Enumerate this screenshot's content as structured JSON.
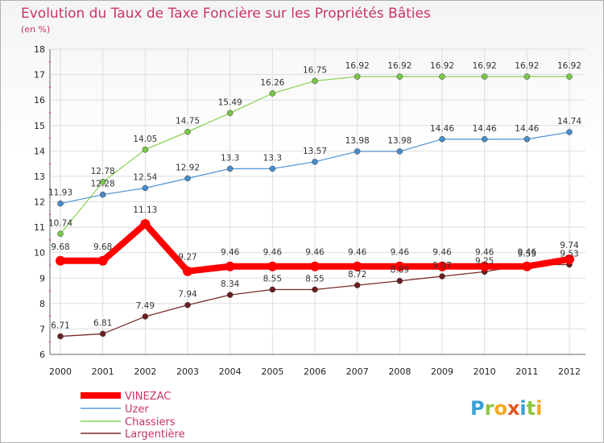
{
  "chart_data": {
    "type": "line",
    "title": "Evolution du Taux de Taxe Foncière sur les Propriétés Bâties",
    "subtitle": "(en %)",
    "xlabel": "",
    "ylabel": "",
    "categories": [
      "2000",
      "2001",
      "2002",
      "2003",
      "2004",
      "2005",
      "2006",
      "2007",
      "2008",
      "2009",
      "2010",
      "2011",
      "2012"
    ],
    "ylim": [
      6,
      18
    ],
    "yticks": [
      6,
      7,
      8,
      9,
      10,
      11,
      12,
      13,
      14,
      15,
      16,
      17,
      18
    ],
    "grid": true,
    "series": [
      {
        "name": "VINEZAC",
        "color": "#ff0000",
        "values": [
          9.68,
          9.68,
          11.13,
          9.27,
          9.46,
          9.46,
          9.46,
          9.46,
          9.46,
          9.46,
          9.46,
          9.46,
          9.74
        ],
        "labels": [
          "9.68",
          "9.68",
          "11.13",
          "9.27",
          "9.46",
          "9.46",
          "9.46",
          "9.46",
          "9.46",
          "9.46",
          "9.46",
          "9.46",
          "9.74"
        ]
      },
      {
        "name": "Uzer",
        "color": "#5b9bd5",
        "values": [
          11.93,
          12.28,
          12.54,
          12.92,
          13.3,
          13.3,
          13.57,
          13.98,
          13.98,
          14.46,
          14.46,
          14.46,
          14.74
        ],
        "labels": [
          "11.93",
          "12.28",
          "12.54",
          "12.92",
          "13.3",
          "13.3",
          "13.57",
          "13.98",
          "13.98",
          "14.46",
          "14.46",
          "14.46",
          "14.74"
        ]
      },
      {
        "name": "Chassiers",
        "color": "#8cd35a",
        "values": [
          10.74,
          12.78,
          14.05,
          14.75,
          15.49,
          16.26,
          16.75,
          16.92,
          16.92,
          16.92,
          16.92,
          16.92,
          16.92
        ],
        "labels": [
          "10.74",
          "12.78",
          "14.05",
          "14.75",
          "15.49",
          "16.26",
          "16.75",
          "16.92",
          "16.92",
          "16.92",
          "16.92",
          "16.92",
          "16.92"
        ]
      },
      {
        "name": "Largentière",
        "color": "#7a2a2a",
        "values": [
          6.71,
          6.81,
          7.49,
          7.94,
          8.34,
          8.55,
          8.55,
          8.72,
          8.89,
          9.07,
          9.25,
          9.53,
          9.53
        ],
        "labels": [
          "6.71",
          "6.81",
          "7.49",
          "7.94",
          "8.34",
          "8.55",
          "8.55",
          "8.72",
          "8.89",
          "9.07",
          "9.25",
          "9.53",
          "9.53"
        ]
      }
    ],
    "legend_position": "bottom-left"
  },
  "brand": {
    "letters": [
      "P",
      "r",
      "o",
      "x",
      "i",
      "t",
      "i"
    ],
    "colors": [
      "#3aa0d8",
      "#8cc63f",
      "#f7a823",
      "#e8541c",
      "#3aa0d8",
      "#8cc63f",
      "#f7a823"
    ]
  }
}
